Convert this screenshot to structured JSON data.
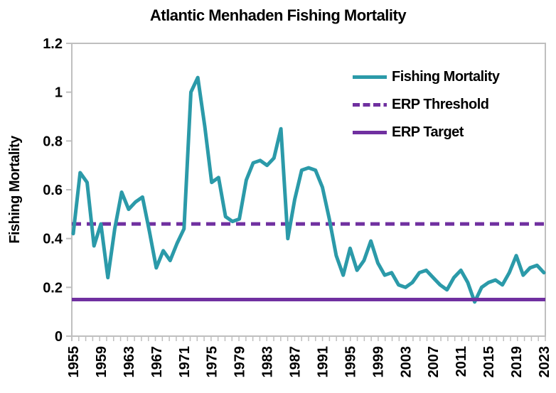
{
  "title": "Atlantic Menhaden Fishing Mortality",
  "y_axis": {
    "label": "Fishing Mortality",
    "tick_labels": [
      "0",
      "0.2",
      "0.4",
      "0.6",
      "0.8",
      "1",
      "1.2"
    ],
    "tick_values": [
      0,
      0.2,
      0.4,
      0.6,
      0.8,
      1.0,
      1.2
    ],
    "min": 0,
    "max": 1.2
  },
  "x_axis": {
    "tick_labels": [
      "1955",
      "1959",
      "1963",
      "1967",
      "1971",
      "1975",
      "1979",
      "1983",
      "1987",
      "1991",
      "1995",
      "1999",
      "2003",
      "2007",
      "2011",
      "2015",
      "2019",
      "2023"
    ],
    "minor_tick_interval_years": 1
  },
  "legend": {
    "items": [
      {
        "label": "Fishing Mortality",
        "color": "#2B9AA9",
        "style": "solid"
      },
      {
        "label": "ERP Threshold",
        "color": "#7030A0",
        "style": "dashed"
      },
      {
        "label": "ERP Target",
        "color": "#7030A0",
        "style": "solid"
      }
    ],
    "position": "top-right-inside"
  },
  "colors": {
    "fishing_mortality_line": "#2B9AA9",
    "erp_threshold_line": "#7030A0",
    "erp_target_line": "#7030A0",
    "axis_and_ticks": "#BFBFBF",
    "text": "#000000",
    "background": "#FFFFFF"
  },
  "chart_data": {
    "type": "line",
    "title": "Atlantic Menhaden Fishing Mortality",
    "xlabel": "",
    "ylabel": "Fishing Mortality",
    "ylim": [
      0,
      1.2
    ],
    "grid": false,
    "legend_position": "top-right",
    "x": [
      1955,
      1956,
      1957,
      1958,
      1959,
      1960,
      1961,
      1962,
      1963,
      1964,
      1965,
      1966,
      1967,
      1968,
      1969,
      1970,
      1971,
      1972,
      1973,
      1974,
      1975,
      1976,
      1977,
      1978,
      1979,
      1980,
      1981,
      1982,
      1983,
      1984,
      1985,
      1986,
      1987,
      1988,
      1989,
      1990,
      1991,
      1992,
      1993,
      1994,
      1995,
      1996,
      1997,
      1998,
      1999,
      2000,
      2001,
      2002,
      2003,
      2004,
      2005,
      2006,
      2007,
      2008,
      2009,
      2010,
      2011,
      2012,
      2013,
      2014,
      2015,
      2016,
      2017,
      2018,
      2019,
      2020,
      2021,
      2022,
      2023
    ],
    "series": [
      {
        "name": "Fishing Mortality",
        "type": "line",
        "values": [
          0.42,
          0.67,
          0.63,
          0.37,
          0.46,
          0.24,
          0.44,
          0.59,
          0.52,
          0.55,
          0.57,
          0.43,
          0.28,
          0.35,
          0.31,
          0.38,
          0.44,
          1.0,
          1.06,
          0.86,
          0.63,
          0.65,
          0.49,
          0.47,
          0.48,
          0.64,
          0.71,
          0.72,
          0.7,
          0.73,
          0.85,
          0.4,
          0.56,
          0.68,
          0.69,
          0.68,
          0.61,
          0.48,
          0.33,
          0.25,
          0.36,
          0.27,
          0.31,
          0.39,
          0.3,
          0.25,
          0.26,
          0.21,
          0.2,
          0.22,
          0.26,
          0.27,
          0.24,
          0.21,
          0.19,
          0.24,
          0.27,
          0.22,
          0.14,
          0.2,
          0.22,
          0.23,
          0.21,
          0.26,
          0.33,
          0.25,
          0.28,
          0.29,
          0.26
        ]
      },
      {
        "name": "ERP Threshold",
        "type": "horizontal-reference-line",
        "value": 0.46,
        "line_style": "dashed"
      },
      {
        "name": "ERP Target",
        "type": "horizontal-reference-line",
        "value": 0.15,
        "line_style": "solid"
      }
    ]
  }
}
